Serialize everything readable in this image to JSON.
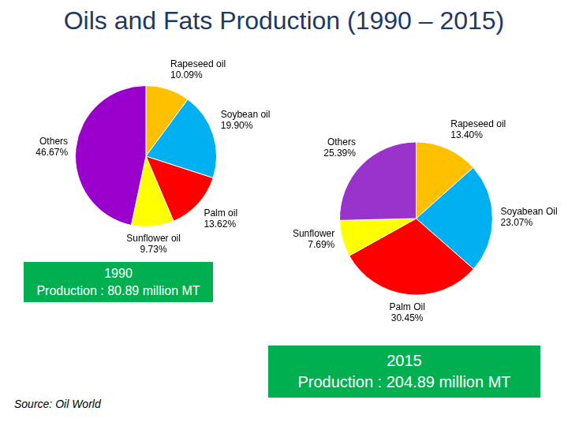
{
  "title": "Oils and Fats Production (1990 – 2015)",
  "source": "Source: Oil World",
  "chart_data": [
    {
      "type": "pie",
      "title": "1990",
      "subtitle": "Production : 80.89 million MT",
      "categories": [
        "Rapeseed oil",
        "Soybean oil",
        "Palm oil",
        "Sunflower oil",
        "Others"
      ],
      "values": [
        10.09,
        19.9,
        13.62,
        9.73,
        46.67
      ],
      "value_labels": [
        "10.09%",
        "19.90%",
        "13.62%",
        "9.73%",
        "46.67%"
      ],
      "colors": [
        "#FFC000",
        "#00B0F0",
        "#FF0000",
        "#FFFF00",
        "#9900CC"
      ],
      "data_labels": true
    },
    {
      "type": "pie",
      "title": "2015",
      "subtitle": "Production : 204.89 million MT",
      "categories": [
        "Rapeseed oil",
        "Soyabean Oil",
        "Palm Oil",
        "Sunflower",
        "Others"
      ],
      "values": [
        13.4,
        23.07,
        30.45,
        7.69,
        25.39
      ],
      "value_labels": [
        "13.40%",
        "23.07%",
        "30.45%",
        "7.69%",
        "25.39%"
      ],
      "colors": [
        "#FFC000",
        "#00B0F0",
        "#FF0000",
        "#FFFF00",
        "#9933CC"
      ],
      "data_labels": true
    }
  ]
}
